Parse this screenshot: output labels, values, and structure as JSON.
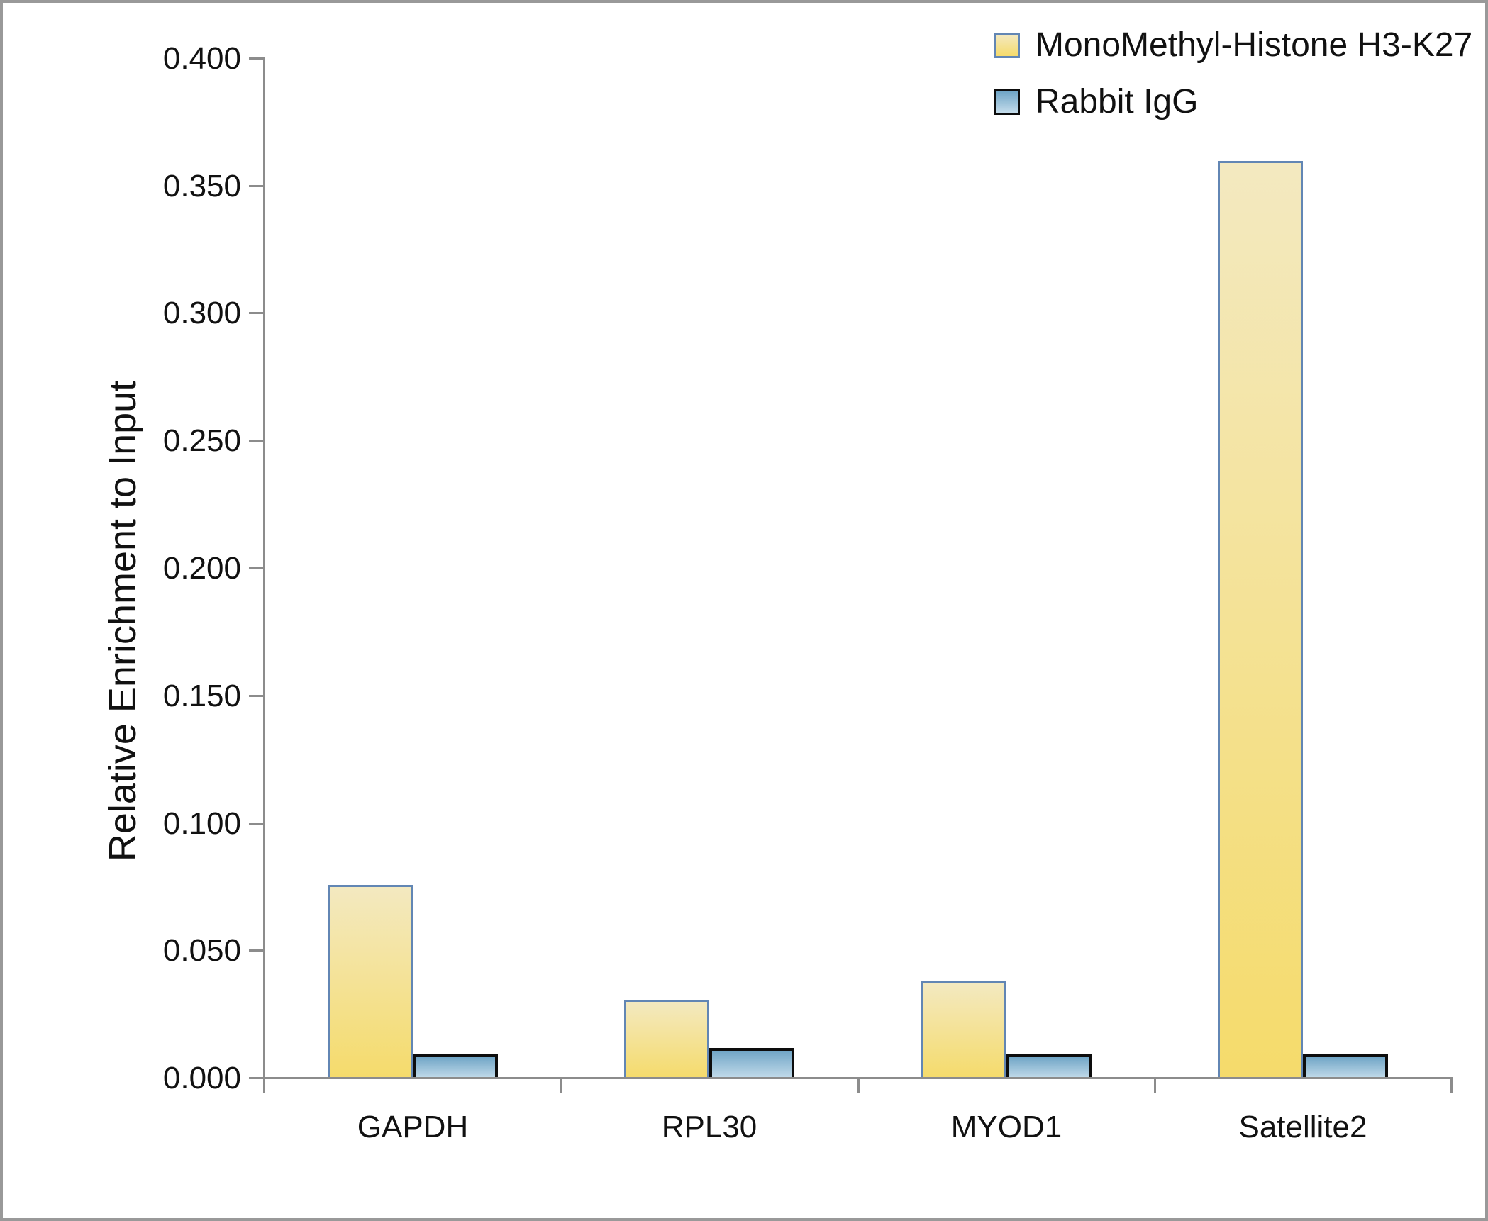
{
  "chart_data": {
    "type": "bar",
    "title": "",
    "xlabel": "",
    "ylabel": "Relative Enrichment to Input",
    "categories": [
      "GAPDH",
      "RPL30",
      "MYOD1",
      "Satellite2"
    ],
    "series": [
      {
        "name": "MonoMethyl-Histone H3-K27",
        "values": [
          0.076,
          0.031,
          0.038,
          0.36
        ],
        "fill_top": "#F3E9C0",
        "fill_bottom": "#F5DB6B",
        "border_color": "#6286B4"
      },
      {
        "name": "Rabbit IgG",
        "values": [
          0.0095,
          0.012,
          0.0095,
          0.0095
        ],
        "fill_top": "#70A5C6",
        "fill_bottom": "#C4DCEB",
        "border_color": "#0D0D0D"
      }
    ],
    "ylim": [
      0,
      0.4
    ],
    "ytick_step": 0.05,
    "ytick_labels": [
      "0.000",
      "0.050",
      "0.100",
      "0.150",
      "0.200",
      "0.250",
      "0.300",
      "0.350",
      "0.400"
    ],
    "grid": false,
    "legend_position": "top-right",
    "axis_color": "#8C8C8C",
    "text_color": "#111111"
  }
}
